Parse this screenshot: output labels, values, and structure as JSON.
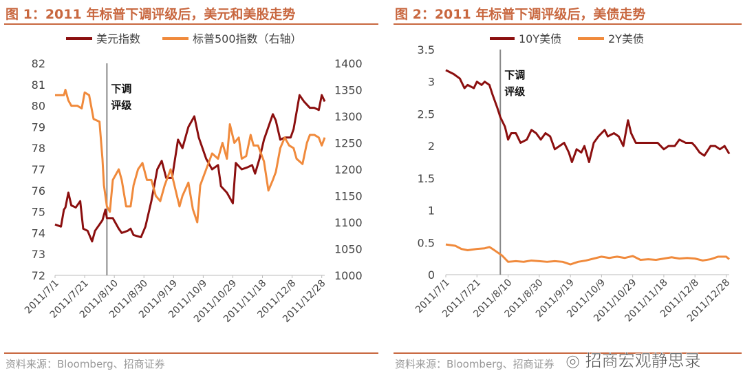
{
  "chart_data": [
    {
      "type": "line",
      "title": "图 1：2011 年标普下调评级后，美元和美股走势",
      "x_unit": "days since 2011/7/1",
      "x_ticks": [
        {
          "day": 0,
          "label": "2011/7/1"
        },
        {
          "day": 20,
          "label": "2011/7/21"
        },
        {
          "day": 40,
          "label": "2011/8/10"
        },
        {
          "day": 60,
          "label": "2011/8/30"
        },
        {
          "day": 80,
          "label": "2011/9/19"
        },
        {
          "day": 100,
          "label": "2011/10/9"
        },
        {
          "day": 120,
          "label": "2011/10/29"
        },
        {
          "day": 140,
          "label": "2011/11/18"
        },
        {
          "day": 160,
          "label": "2011/12/8"
        },
        {
          "day": 180,
          "label": "2011/12/28"
        }
      ],
      "ylim": [
        72,
        82
      ],
      "y_ticks": [
        72,
        73,
        74,
        75,
        76,
        77,
        78,
        79,
        80,
        81,
        82
      ],
      "y2lim": [
        1000,
        1400
      ],
      "y2_ticks": [
        1000,
        1050,
        1100,
        1150,
        1200,
        1250,
        1300,
        1350,
        1400
      ],
      "annotation": {
        "day": 35,
        "label": "下调评级"
      },
      "legend": "top",
      "series": [
        {
          "name": "美元指数",
          "axis": "left",
          "color": "#8b0f0f",
          "points": [
            [
              0,
              74.4
            ],
            [
              4,
              74.3
            ],
            [
              6,
              75.1
            ],
            [
              7,
              75.2
            ],
            [
              9,
              75.9
            ],
            [
              11,
              75.3
            ],
            [
              14,
              75.2
            ],
            [
              17,
              75.5
            ],
            [
              19,
              74.2
            ],
            [
              22,
              74.1
            ],
            [
              25,
              73.6
            ],
            [
              27,
              74.1
            ],
            [
              30,
              74.4
            ],
            [
              32,
              74.6
            ],
            [
              34,
              75.1
            ],
            [
              35,
              74.7
            ],
            [
              39,
              74.7
            ],
            [
              43,
              74.2
            ],
            [
              45,
              74.0
            ],
            [
              49,
              74.1
            ],
            [
              51,
              74.2
            ],
            [
              53,
              73.9
            ],
            [
              58,
              73.8
            ],
            [
              61,
              74.3
            ],
            [
              65,
              75.5
            ],
            [
              69,
              77.0
            ],
            [
              72,
              77.4
            ],
            [
              75,
              76.6
            ],
            [
              79,
              76.6
            ],
            [
              83,
              78.4
            ],
            [
              86,
              78.0
            ],
            [
              90,
              79.0
            ],
            [
              94,
              79.5
            ],
            [
              97,
              78.5
            ],
            [
              102,
              77.5
            ],
            [
              106,
              77.0
            ],
            [
              110,
              77.2
            ],
            [
              112,
              76.2
            ],
            [
              116,
              75.9
            ],
            [
              120,
              75.4
            ],
            [
              122,
              77.3
            ],
            [
              126,
              77.0
            ],
            [
              130,
              77.1
            ],
            [
              133,
              77.2
            ],
            [
              135,
              76.8
            ],
            [
              138,
              77.5
            ],
            [
              141,
              78.4
            ],
            [
              144,
              79.0
            ],
            [
              147,
              79.6
            ],
            [
              149,
              79.3
            ],
            [
              152,
              78.4
            ],
            [
              155,
              78.5
            ],
            [
              159,
              78.5
            ],
            [
              161,
              78.9
            ],
            [
              165,
              80.5
            ],
            [
              168,
              80.2
            ],
            [
              172,
              79.9
            ],
            [
              175,
              79.9
            ],
            [
              178,
              79.8
            ],
            [
              180,
              80.5
            ],
            [
              182,
              80.2
            ]
          ]
        },
        {
          "name": "标普500指数（右轴）",
          "axis": "right",
          "color": "#f08a3c",
          "points": [
            [
              0,
              1340
            ],
            [
              6,
              1340
            ],
            [
              7,
              1350
            ],
            [
              9,
              1330
            ],
            [
              11,
              1320
            ],
            [
              15,
              1320
            ],
            [
              18,
              1315
            ],
            [
              20,
              1345
            ],
            [
              23,
              1340
            ],
            [
              26,
              1295
            ],
            [
              30,
              1290
            ],
            [
              32,
              1220
            ],
            [
              33,
              1170
            ],
            [
              35,
              1130
            ],
            [
              37,
              1120
            ],
            [
              39,
              1180
            ],
            [
              43,
              1200
            ],
            [
              45,
              1180
            ],
            [
              48,
              1130
            ],
            [
              51,
              1130
            ],
            [
              53,
              1170
            ],
            [
              56,
              1200
            ],
            [
              59,
              1212
            ],
            [
              62,
              1180
            ],
            [
              65,
              1180
            ],
            [
              68,
              1150
            ],
            [
              71,
              1140
            ],
            [
              74,
              1170
            ],
            [
              78,
              1200
            ],
            [
              81,
              1165
            ],
            [
              84,
              1130
            ],
            [
              86,
              1150
            ],
            [
              90,
              1175
            ],
            [
              93,
              1125
            ],
            [
              96,
              1100
            ],
            [
              98,
              1170
            ],
            [
              102,
              1200
            ],
            [
              106,
              1230
            ],
            [
              110,
              1220
            ],
            [
              113,
              1250
            ],
            [
              116,
              1220
            ],
            [
              118,
              1285
            ],
            [
              121,
              1250
            ],
            [
              124,
              1260
            ],
            [
              126,
              1220
            ],
            [
              129,
              1225
            ],
            [
              132,
              1265
            ],
            [
              134,
              1245
            ],
            [
              137,
              1245
            ],
            [
              141,
              1215
            ],
            [
              144,
              1160
            ],
            [
              147,
              1180
            ],
            [
              149,
              1195
            ],
            [
              152,
              1240
            ],
            [
              155,
              1260
            ],
            [
              158,
              1245
            ],
            [
              161,
              1240
            ],
            [
              163,
              1220
            ],
            [
              167,
              1210
            ],
            [
              170,
              1250
            ],
            [
              172,
              1265
            ],
            [
              175,
              1265
            ],
            [
              178,
              1260
            ],
            [
              180,
              1245
            ],
            [
              182,
              1260
            ]
          ]
        }
      ],
      "source": "资料来源：Bloomberg、招商证券"
    },
    {
      "type": "line",
      "title": "图 2：2011 年标普下调评级后，美债走势",
      "x_unit": "days since 2011/7/1",
      "x_ticks": [
        {
          "day": 0,
          "label": "2011/7/1"
        },
        {
          "day": 20,
          "label": "2011/7/21"
        },
        {
          "day": 40,
          "label": "2011/8/10"
        },
        {
          "day": 60,
          "label": "2011/8/30"
        },
        {
          "day": 80,
          "label": "2011/9/19"
        },
        {
          "day": 100,
          "label": "2011/10/9"
        },
        {
          "day": 120,
          "label": "2011/10/29"
        },
        {
          "day": 140,
          "label": "2011/11/18"
        },
        {
          "day": 160,
          "label": "2011/12/8"
        },
        {
          "day": 180,
          "label": "2011/12/28"
        }
      ],
      "ylim": [
        0,
        3.5
      ],
      "y_ticks": [
        0,
        0.5,
        1,
        1.5,
        2,
        2.5,
        3,
        3.5
      ],
      "annotation": {
        "day": 35,
        "label": "下调评级"
      },
      "legend": "top",
      "series": [
        {
          "name": "10Y美债",
          "axis": "left",
          "color": "#8b0f0f",
          "points": [
            [
              0,
              3.18
            ],
            [
              5,
              3.12
            ],
            [
              9,
              3.05
            ],
            [
              12,
              2.9
            ],
            [
              14,
              2.95
            ],
            [
              18,
              2.9
            ],
            [
              20,
              3.0
            ],
            [
              23,
              2.95
            ],
            [
              25,
              3.0
            ],
            [
              28,
              2.95
            ],
            [
              30,
              2.8
            ],
            [
              33,
              2.6
            ],
            [
              35,
              2.45
            ],
            [
              38,
              2.3
            ],
            [
              40,
              2.1
            ],
            [
              42,
              2.2
            ],
            [
              45,
              2.2
            ],
            [
              48,
              2.05
            ],
            [
              52,
              2.1
            ],
            [
              55,
              2.25
            ],
            [
              58,
              2.2
            ],
            [
              61,
              2.1
            ],
            [
              64,
              2.2
            ],
            [
              67,
              2.15
            ],
            [
              70,
              1.95
            ],
            [
              73,
              2.0
            ],
            [
              76,
              2.05
            ],
            [
              79,
              1.9
            ],
            [
              81,
              1.75
            ],
            [
              84,
              1.95
            ],
            [
              87,
              1.9
            ],
            [
              89,
              2.0
            ],
            [
              92,
              1.75
            ],
            [
              95,
              2.05
            ],
            [
              98,
              2.15
            ],
            [
              102,
              2.25
            ],
            [
              104,
              2.15
            ],
            [
              108,
              2.2
            ],
            [
              111,
              2.15
            ],
            [
              114,
              2.0
            ],
            [
              117,
              2.4
            ],
            [
              119,
              2.2
            ],
            [
              122,
              2.05
            ],
            [
              125,
              2.05
            ],
            [
              129,
              2.05
            ],
            [
              133,
              2.05
            ],
            [
              136,
              2.05
            ],
            [
              140,
              1.95
            ],
            [
              143,
              2.0
            ],
            [
              147,
              2.0
            ],
            [
              150,
              2.1
            ],
            [
              154,
              2.05
            ],
            [
              158,
              2.05
            ],
            [
              160,
              2.0
            ],
            [
              163,
              1.9
            ],
            [
              166,
              1.85
            ],
            [
              170,
              2.0
            ],
            [
              173,
              2.0
            ],
            [
              176,
              1.95
            ],
            [
              179,
              2.0
            ],
            [
              182,
              1.88
            ]
          ]
        },
        {
          "name": "2Y美债",
          "axis": "left",
          "color": "#f08a3c",
          "points": [
            [
              0,
              0.47
            ],
            [
              6,
              0.45
            ],
            [
              10,
              0.4
            ],
            [
              14,
              0.38
            ],
            [
              20,
              0.4
            ],
            [
              25,
              0.41
            ],
            [
              28,
              0.43
            ],
            [
              30,
              0.4
            ],
            [
              33,
              0.35
            ],
            [
              36,
              0.3
            ],
            [
              40,
              0.2
            ],
            [
              45,
              0.21
            ],
            [
              50,
              0.2
            ],
            [
              55,
              0.22
            ],
            [
              60,
              0.21
            ],
            [
              65,
              0.2
            ],
            [
              70,
              0.21
            ],
            [
              75,
              0.2
            ],
            [
              80,
              0.16
            ],
            [
              85,
              0.2
            ],
            [
              90,
              0.22
            ],
            [
              95,
              0.25
            ],
            [
              100,
              0.28
            ],
            [
              105,
              0.26
            ],
            [
              110,
              0.28
            ],
            [
              115,
              0.26
            ],
            [
              120,
              0.29
            ],
            [
              125,
              0.23
            ],
            [
              130,
              0.24
            ],
            [
              135,
              0.23
            ],
            [
              140,
              0.25
            ],
            [
              145,
              0.27
            ],
            [
              150,
              0.25
            ],
            [
              155,
              0.26
            ],
            [
              160,
              0.25
            ],
            [
              165,
              0.22
            ],
            [
              170,
              0.24
            ],
            [
              175,
              0.28
            ],
            [
              180,
              0.28
            ],
            [
              182,
              0.24
            ]
          ]
        }
      ],
      "source": "资料来源：Bloomberg、招商证券"
    }
  ],
  "watermark": "招商宏观静思录"
}
